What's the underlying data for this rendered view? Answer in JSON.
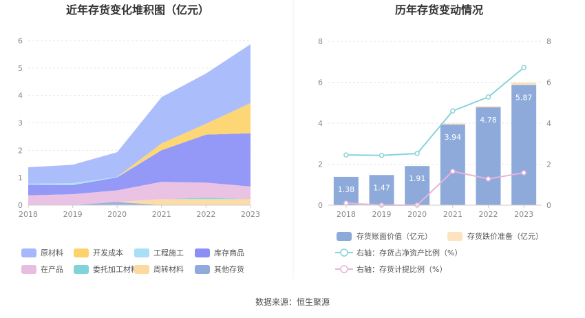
{
  "source_text": "数据来源：恒生聚源",
  "chart_data": [
    {
      "type": "area",
      "stacked": true,
      "title": "近年存货变化堆积图（亿元）",
      "x": [
        "2018",
        "2019",
        "2020",
        "2021",
        "2022",
        "2023"
      ],
      "ylim": [
        0,
        6
      ],
      "yticks": [
        "0",
        "1",
        "2",
        "3",
        "4",
        "5",
        "6"
      ],
      "grid": true,
      "legend_position": "bottom",
      "series": [
        {
          "name": "其他存货",
          "color": "#8faadc",
          "values": [
            0.0,
            0.0,
            0.12,
            0.0,
            0.0,
            0.0
          ]
        },
        {
          "name": "周转材料",
          "color": "#fdd9a0",
          "values": [
            0.0,
            0.0,
            0.0,
            0.22,
            0.22,
            0.22
          ]
        },
        {
          "name": "委托加工材料",
          "color": "#7fd3d9",
          "values": [
            0.0,
            0.0,
            0.0,
            0.0,
            0.05,
            0.0
          ]
        },
        {
          "name": "在产品",
          "color": "#e8bde2",
          "values": [
            0.36,
            0.4,
            0.42,
            0.63,
            0.55,
            0.46
          ]
        },
        {
          "name": "库存商品",
          "color": "#8b8ff5",
          "values": [
            0.38,
            0.33,
            0.47,
            1.15,
            1.75,
            1.94
          ]
        },
        {
          "name": "工程施工",
          "color": "#a8dff7",
          "values": [
            0.04,
            0.07,
            0.02,
            0.0,
            0.0,
            0.0
          ]
        },
        {
          "name": "开发成本",
          "color": "#fdd26a",
          "values": [
            0.0,
            0.0,
            0.0,
            0.25,
            0.4,
            1.1
          ]
        },
        {
          "name": "原材料",
          "color": "#a4b8fb",
          "values": [
            0.6,
            0.67,
            0.9,
            1.69,
            1.83,
            2.15
          ]
        }
      ],
      "legend_order": [
        "原材料",
        "开发成本",
        "工程施工",
        "库存商品",
        "在产品",
        "委托加工材料",
        "周转材料",
        "其他存货"
      ]
    },
    {
      "type": "bar",
      "title": "历年存货变动情况",
      "categories": [
        "2018",
        "2019",
        "2020",
        "2021",
        "2022",
        "2023"
      ],
      "ylim_left": [
        0,
        8
      ],
      "ylim_right": [
        0,
        8
      ],
      "yticks_left": [
        "0",
        "2",
        "4",
        "6",
        "8"
      ],
      "yticks_right": [
        "0",
        "2",
        "4",
        "6",
        "8"
      ],
      "grid": true,
      "legend_position": "bottom",
      "series": [
        {
          "name": "存货账面价值（亿元）",
          "kind": "bar",
          "axis": "left",
          "color": "#8eaadb",
          "values": [
            1.38,
            1.47,
            1.91,
            3.94,
            4.78,
            5.87
          ],
          "labels": [
            "1.38",
            "1.47",
            "1.91",
            "3.94",
            "4.78",
            "5.87"
          ]
        },
        {
          "name": "存货跌价准备（亿元）",
          "kind": "bar",
          "axis": "left",
          "stacked": true,
          "color": "#fde4bf",
          "values": [
            0.0,
            0.0,
            0.0,
            0.05,
            0.05,
            0.12
          ]
        },
        {
          "name": "右轴：存货占净资产比例（%）",
          "kind": "line",
          "axis": "right",
          "color": "#86d3d9",
          "values": [
            2.45,
            2.43,
            2.52,
            4.6,
            5.28,
            6.72
          ]
        },
        {
          "name": "右轴：存货计提比例（%）",
          "kind": "line",
          "axis": "right",
          "color": "#e7b3d8",
          "values": [
            0.1,
            0.0,
            0.0,
            1.65,
            1.28,
            1.58
          ]
        }
      ]
    }
  ]
}
